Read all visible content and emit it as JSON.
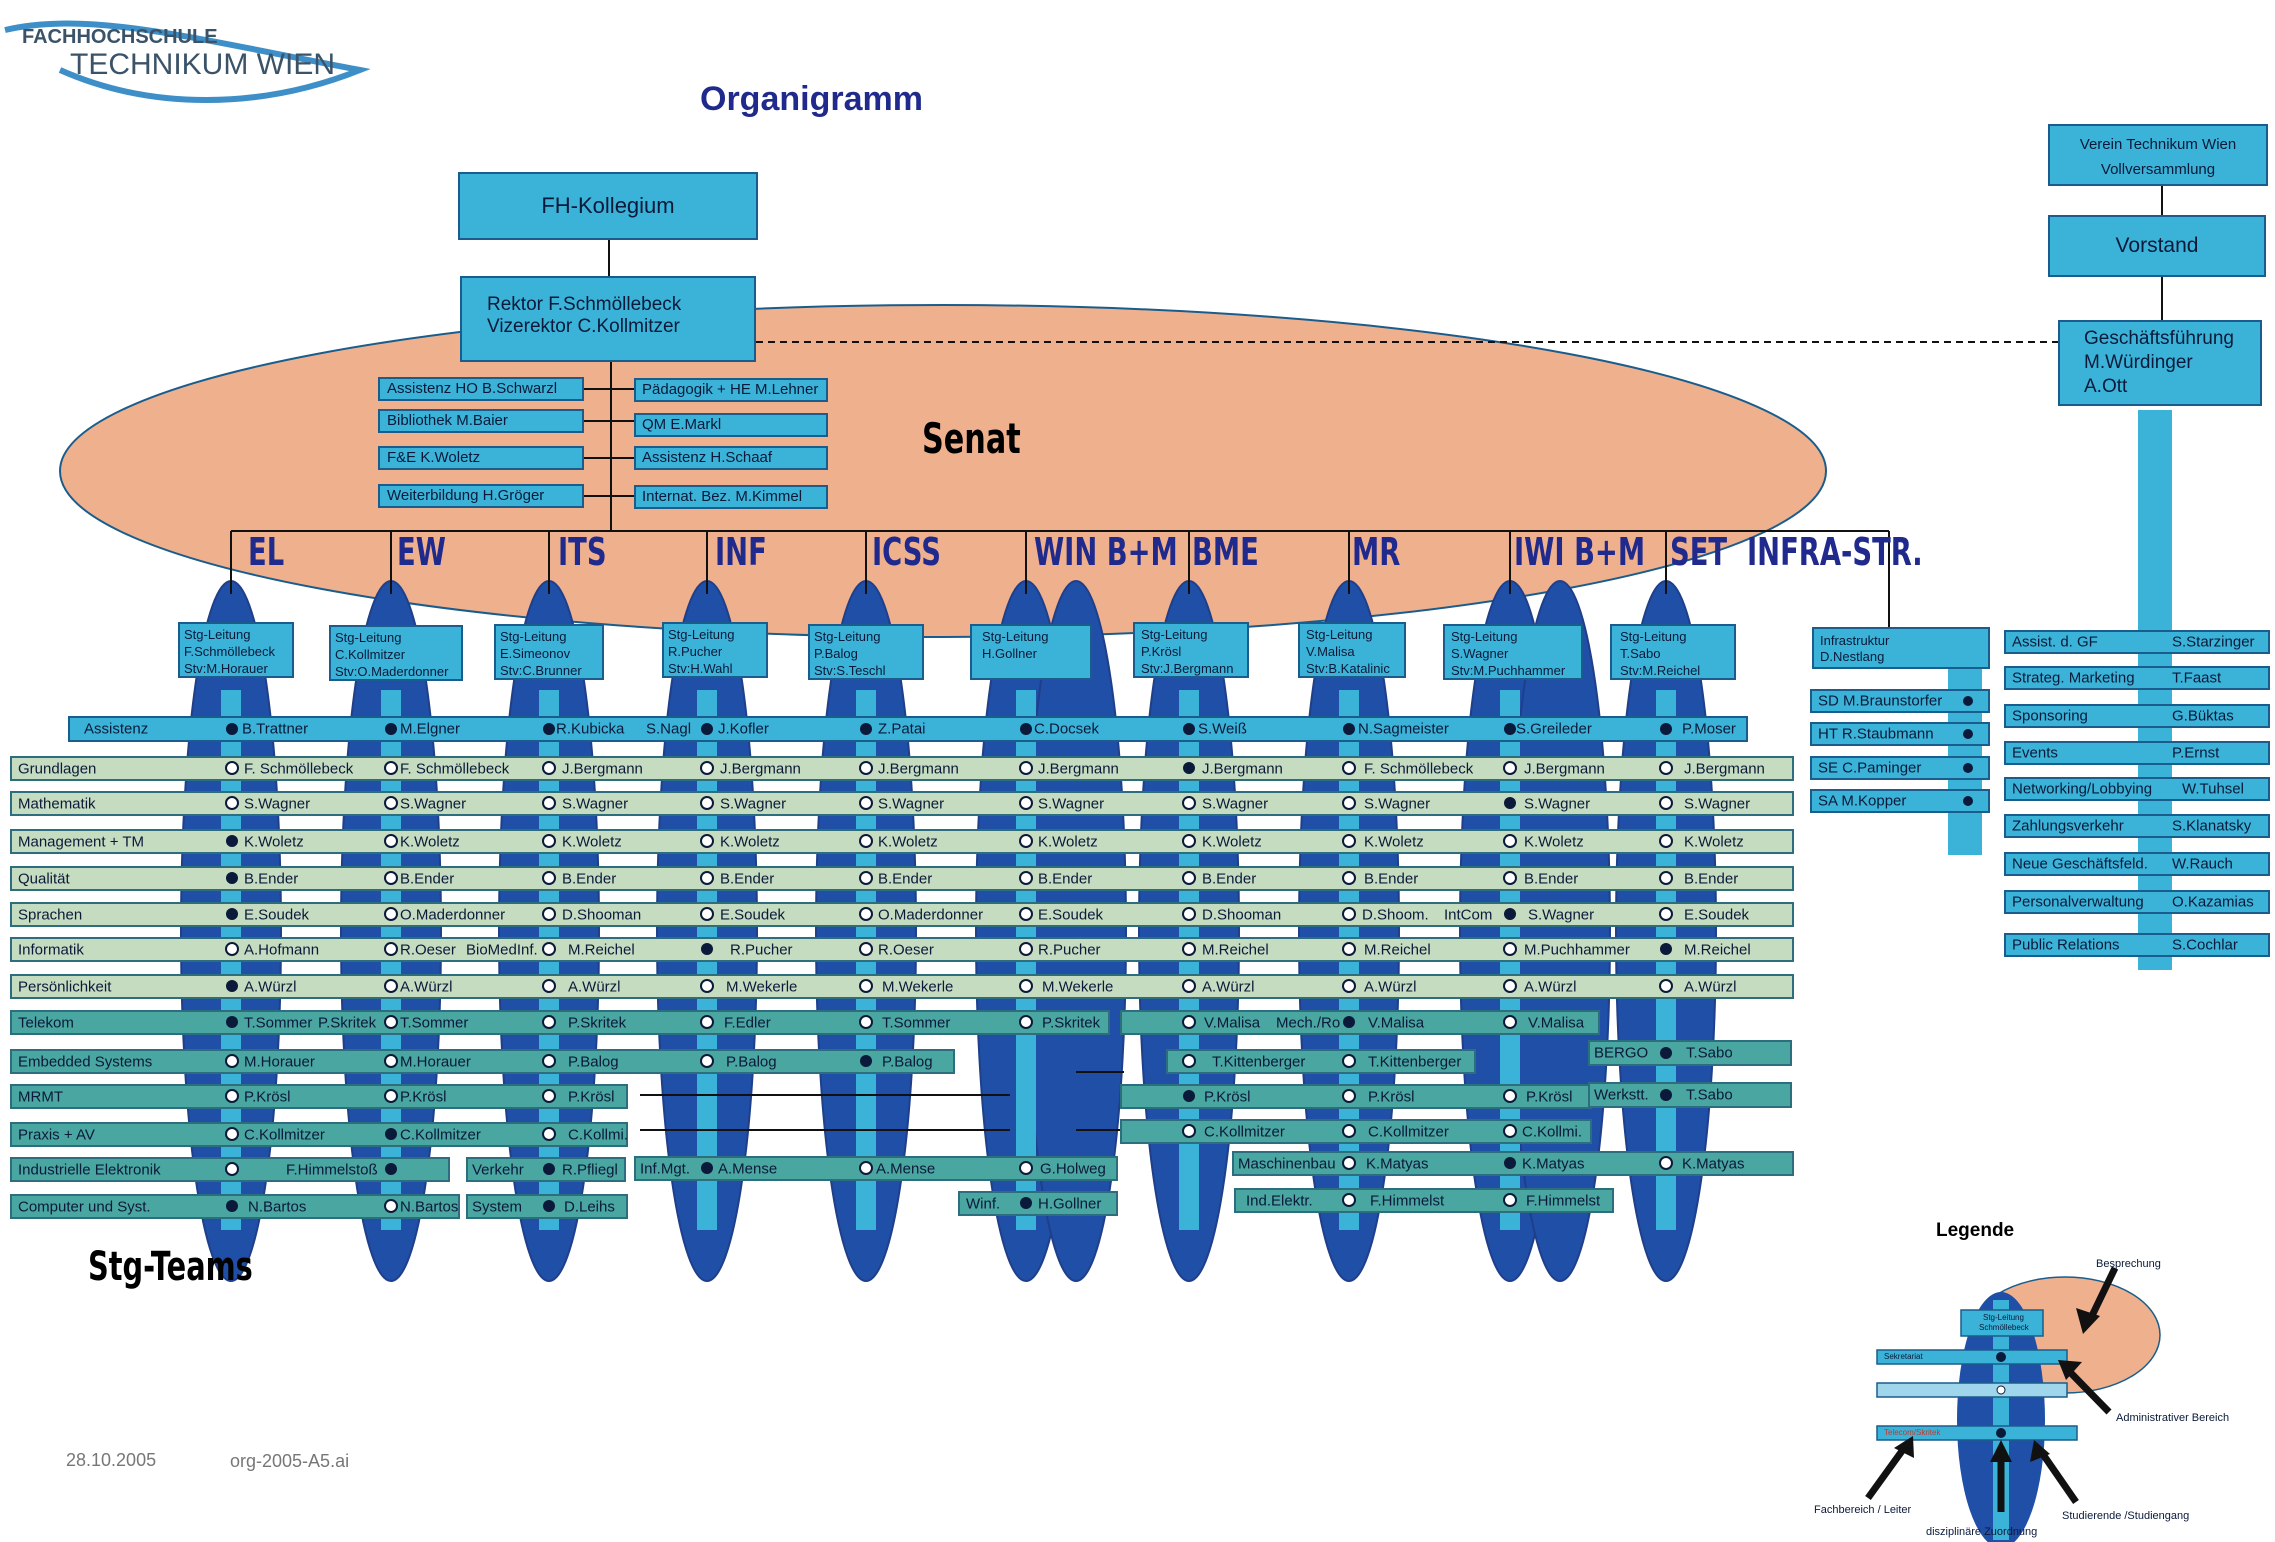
{
  "logo": {
    "line1": "FACHHOCHSCHULE",
    "line2": "TECHNIKUM WIEN"
  },
  "title": "Organigramm",
  "senat_label": "Senat",
  "stg_teams_label": "Stg-Teams",
  "footer": {
    "date": "28.10.2005",
    "file": "org-2005-A5.ai"
  },
  "kollegium": "FH-Kollegium",
  "rektor": {
    "line1": "Rektor    F.Schmöllebeck",
    "line2": "Vizerektor  C.Kollmitzer"
  },
  "left_staff": [
    "Assistenz HO B.Schwarzl",
    "Bibliothek  M.Baier",
    "F&E     K.Woletz",
    "Weiterbildung H.Gröger"
  ],
  "right_staff": [
    "Pädagogik + HE M.Lehner",
    "QM E.Markl",
    "Assistenz    H.Schaaf",
    "Internat. Bez. M.Kimmel"
  ],
  "programs": [
    "EL",
    "EW",
    "ITS",
    "INF",
    "ICSS",
    "WIN B+M",
    "BME",
    "MR",
    "IWI B+M",
    "SET",
    "INFRA-STR."
  ],
  "stg_leitung": [
    [
      "Stg-Leitung",
      "F.Schmöllebeck",
      "Stv:M.Horauer"
    ],
    [
      "Stg-Leitung",
      "C.Kollmitzer",
      "Stv:O.Maderdonner"
    ],
    [
      "Stg-Leitung",
      "E.Simeonov",
      "Stv:C.Brunner"
    ],
    [
      "Stg-Leitung",
      "R.Pucher",
      "Stv:H.Wahl"
    ],
    [
      "Stg-Leitung",
      "P.Balog",
      "Stv:S.Teschl"
    ],
    [
      "Stg-Leitung",
      "H.Gollner"
    ],
    [
      "Stg-Leitung",
      "P.Krösl",
      "Stv:J.Bergmann"
    ],
    [
      "Stg-Leitung",
      "V.Malisa",
      "Stv:B.Katalinic"
    ],
    [
      "Stg-Leitung",
      "S.Wagner",
      "Stv:M.Puchhammer"
    ],
    [
      "Stg-Leitung",
      "T.Sabo",
      "Stv:M.Reichel"
    ]
  ],
  "assistenz": {
    "label": "Assistenz",
    "names": [
      "B.Trattner",
      "M.Elgner",
      "R.Kubicka",
      "S.Nagl",
      "J.Kofler",
      "Z.Patai",
      "C.Docsek",
      "S.Weiß",
      "N.Sagmeister",
      "S.Greileder",
      "P.Moser"
    ]
  },
  "rows": [
    {
      "label": "Grundlagen",
      "cells": [
        "F. Schmöllebeck",
        "F. Schmöllebeck",
        "J.Bergmann",
        "J.Bergmann",
        "J.Bergmann",
        "J.Bergmann",
        "J.Bergmann",
        "F. Schmöllebeck",
        "J.Bergmann",
        "J.Bergmann"
      ]
    },
    {
      "label": "Mathematik",
      "cells": [
        "S.Wagner",
        "S.Wagner",
        "S.Wagner",
        "S.Wagner",
        "S.Wagner",
        "S.Wagner",
        "S.Wagner",
        "S.Wagner",
        "S.Wagner",
        "S.Wagner"
      ]
    },
    {
      "label": "Management + TM",
      "cells": [
        "K.Woletz",
        "K.Woletz",
        "K.Woletz",
        "K.Woletz",
        "K.Woletz",
        "K.Woletz",
        "K.Woletz",
        "K.Woletz",
        "K.Woletz",
        "K.Woletz"
      ]
    },
    {
      "label": "Qualität",
      "cells": [
        "B.Ender",
        "B.Ender",
        "B.Ender",
        "B.Ender",
        "B.Ender",
        "B.Ender",
        "B.Ender",
        "B.Ender",
        "B.Ender",
        "B.Ender"
      ]
    },
    {
      "label": "Sprachen",
      "cells": [
        "E.Soudek",
        "O.Maderdonner",
        "D.Shooman",
        "E.Soudek",
        "O.Maderdonner",
        "E.Soudek",
        "D.Shooman",
        "D.Shoom.",
        "S.Wagner",
        "E.Soudek"
      ],
      "extra": "IntCom"
    },
    {
      "label": "Informatik",
      "cells": [
        "A.Hofmann",
        "R.Oeser",
        "M.Reichel",
        "R.Pucher",
        "R.Oeser",
        "R.Pucher",
        "M.Reichel",
        "M.Reichel",
        "M.Puchhammer",
        "M.Reichel"
      ],
      "extra": "BioMedInf."
    },
    {
      "label": "Persönlichkeit",
      "cells": [
        "A.Würzl",
        "A.Würzl",
        "A.Würzl",
        "M.Wekerle",
        "M.Wekerle",
        "M.Wekerle",
        "A.Würzl",
        "A.Würzl",
        "A.Würzl",
        "A.Würzl"
      ]
    },
    {
      "label": "Telekom",
      "cells": [
        "T.Sommer",
        "T.Sommer",
        "P.Skritek",
        "F.Edler",
        "T.Sommer",
        "P.Skritek",
        "V.Malisa",
        "V.Malisa",
        "V.Malisa"
      ],
      "extra": "P.Skritek",
      "extra2": "Mech./Ro"
    },
    {
      "label": "Embedded Systems",
      "cells": [
        "M.Horauer",
        "M.Horauer",
        "P.Balog",
        "P.Balog",
        "P.Balog",
        "T.Kittenberger",
        "T.Kittenberger",
        "T.Sabo"
      ],
      "extra": "BERGO"
    },
    {
      "label": "MRMT",
      "cells": [
        "P.Krösl",
        "P.Krösl",
        "P.Krösl",
        "P.Krösl",
        "P.Krösl",
        "P.Krösl",
        "T.Sabo"
      ],
      "extra": "Werkstt."
    },
    {
      "label": "Praxis + AV",
      "cells": [
        "C.Kollmitzer",
        "C.Kollmitzer",
        "C.Kollmi.",
        "C.Kollmitzer",
        "C.Kollmitzer",
        "C.Kollmi."
      ]
    },
    {
      "label": "Industrielle Elektronik",
      "cells": [
        "F.Himmelstoß",
        "R.Pfliegl",
        "A.Mense",
        "A.Mense",
        "G.Holweg",
        "K.Matyas",
        "K.Matyas",
        "K.Matyas"
      ],
      "extra": "Verkehr",
      "extra2": "Inf.Mgt.",
      "extra3": "Maschinenbau"
    },
    {
      "label": "Computer und Syst.",
      "cells": [
        "N.Bartos",
        "N.Bartos",
        "D.Leihs",
        "H.Gollner",
        "F.Himmelst",
        "F.Himmelst"
      ],
      "extra": "System",
      "extra2": "Winf.",
      "extra3": "Ind.Elektr."
    }
  ],
  "infra": {
    "header": [
      "Infrastruktur",
      "D.Nestlang"
    ],
    "items": [
      "SD M.Braunstorfer",
      "HT R.Staubmann",
      "SE C.Paminger",
      "SA M.Kopper"
    ]
  },
  "verein": {
    "line1": "Verein Technikum Wien",
    "line2": "Vollversammlung"
  },
  "vorstand": "Vorstand",
  "gf": {
    "line1": "Geschäftsführung",
    "line2": "M.Würdinger",
    "line3": "A.Ott"
  },
  "gf_items": [
    [
      "Assist. d. GF",
      "S.Starzinger"
    ],
    [
      "Strateg. Marketing",
      "T.Faast"
    ],
    [
      "Sponsoring",
      "G.Büktas"
    ],
    [
      "Events",
      "P.Ernst"
    ],
    [
      "Networking/Lobbying",
      "W.Tuhsel"
    ],
    [
      "Zahlungsverkehr",
      "S.Klanatsky"
    ],
    [
      "Neue Geschäftsfeld.",
      "W.Rauch"
    ],
    [
      "Personalverwaltung",
      "O.Kazamias"
    ],
    [
      "Public Relations",
      "S.Cochlar"
    ]
  ],
  "legend": {
    "title": "Legende",
    "besprechung": "Besprechung",
    "admin": "Administrativer Bereich",
    "fachbereich": "Fachbereich / Leiter",
    "diszipl": "disziplinäre Zuordnung",
    "studierende": "Studierende /Studiengang",
    "mini_stg": "Stg-Leitung",
    "mini_name": "Schmöllebeck",
    "mini_sek": "Sekretariat",
    "mini_tel": "Telecom/Skritek"
  },
  "colors": {
    "accent_blue": "#3bb3d8",
    "dark_blue": "#1f4fa6",
    "senat_orange": "#efb08e",
    "light_green": "#c5dcc0",
    "teal": "#4aa6a0",
    "title_navy": "#1f2a8c",
    "red_text": "#c0392b"
  }
}
